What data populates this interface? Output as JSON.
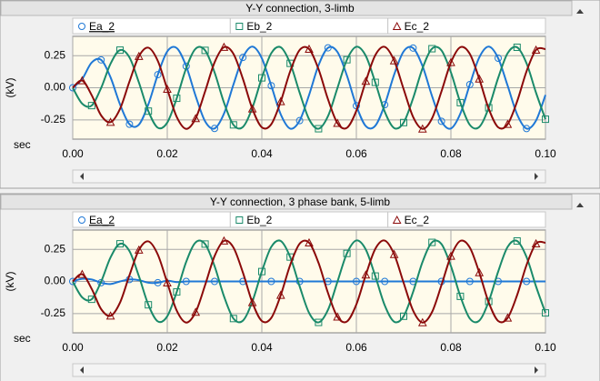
{
  "chart_data": [
    {
      "type": "line",
      "title": "Y-Y connection, 3-limb",
      "y_label": "(kV)",
      "x_label": "sec",
      "x": [
        0,
        0.002,
        0.004,
        0.006,
        0.008,
        0.01,
        0.012,
        0.014,
        0.016,
        0.018,
        0.02,
        0.022,
        0.024,
        0.026,
        0.028,
        0.03,
        0.032,
        0.034,
        0.036,
        0.038,
        0.04,
        0.042,
        0.044,
        0.046,
        0.048,
        0.05,
        0.052,
        0.054,
        0.056,
        0.058,
        0.06,
        0.062,
        0.064,
        0.066,
        0.068,
        0.07,
        0.072,
        0.074,
        0.076,
        0.078,
        0.08,
        0.082,
        0.084,
        0.086,
        0.088,
        0.09,
        0.092,
        0.094,
        0.096,
        0.098,
        0.1
      ],
      "series": [
        {
          "name": "Ea_2",
          "color": "#1f78d6",
          "marker": "circle",
          "values": [
            0,
            0.068,
            0.196,
            0.217,
            0.081,
            -0.129,
            -0.284,
            -0.287,
            -0.129,
            0.102,
            0.283,
            0.309,
            0.168,
            -0.064,
            -0.261,
            -0.317,
            -0.201,
            0.025,
            0.236,
            0.32,
            0.23,
            0.016,
            -0.207,
            -0.318,
            -0.256,
            -0.056,
            0.175,
            0.311,
            0.278,
            0.095,
            -0.14,
            -0.299,
            -0.296,
            -0.132,
            0.103,
            0.283,
            0.309,
            0.168,
            -0.064,
            -0.261,
            -0.317,
            -0.201,
            0.025,
            0.236,
            0.32,
            0.23,
            0.016,
            -0.207,
            -0.318,
            -0.256,
            -0.056
          ]
        },
        {
          "name": "Eb_2",
          "color": "#1a8a6a",
          "marker": "square",
          "values": [
            0,
            -0.124,
            -0.139,
            -0.002,
            0.187,
            0.293,
            0.236,
            0.041,
            -0.182,
            -0.311,
            -0.271,
            -0.082,
            0.152,
            0.304,
            0.291,
            0.12,
            -0.116,
            -0.289,
            -0.305,
            -0.156,
            0.077,
            0.269,
            0.315,
            0.19,
            -0.038,
            -0.245,
            -0.319,
            -0.221,
            -0.002,
            0.218,
            0.319,
            0.248,
            0.042,
            -0.186,
            -0.314,
            -0.271,
            -0.082,
            0.152,
            0.304,
            0.291,
            0.12,
            -0.116,
            -0.289,
            -0.305,
            -0.156,
            0.077,
            0.269,
            0.315,
            0.19,
            -0.038,
            -0.245
          ]
        },
        {
          "name": "Ec_2",
          "color": "#8b0a0a",
          "marker": "triangle",
          "values": [
            0,
            0.056,
            -0.057,
            -0.215,
            -0.268,
            -0.165,
            0.048,
            0.245,
            0.312,
            0.209,
            -0.011,
            -0.227,
            -0.32,
            -0.239,
            -0.029,
            0.197,
            0.316,
            0.264,
            0.069,
            -0.164,
            -0.308,
            -0.284,
            -0.107,
            0.128,
            0.294,
            0.301,
            0.144,
            -0.09,
            -0.276,
            -0.312,
            -0.179,
            0.051,
            0.253,
            0.318,
            0.211,
            -0.011,
            -0.227,
            -0.32,
            -0.239,
            -0.029,
            0.197,
            0.316,
            0.264,
            0.069,
            -0.164,
            -0.308,
            -0.284,
            -0.107,
            0.128,
            0.294,
            0.301
          ]
        }
      ],
      "xlim": [
        0,
        0.1
      ],
      "xticks": [
        {
          "value": 0,
          "label": "0.00"
        },
        0.02,
        0.04,
        0.06,
        0.08,
        {
          "value": 0.1,
          "label": "0.10"
        }
      ],
      "ylim": [
        -0.4,
        0.4
      ],
      "yticks": [
        0.25,
        {
          "value": 0,
          "label": "0.00"
        },
        -0.25
      ],
      "grid": true
    },
    {
      "type": "line",
      "title": "Y-Y connection, 3 phase bank, 5-limb",
      "y_label": "(kV)",
      "x_label": "sec",
      "x": [
        0,
        0.002,
        0.004,
        0.006,
        0.008,
        0.01,
        0.012,
        0.014,
        0.016,
        0.018,
        0.02,
        0.022,
        0.024,
        0.026,
        0.028,
        0.03,
        0.032,
        0.034,
        0.036,
        0.038,
        0.04,
        0.042,
        0.044,
        0.046,
        0.048,
        0.05,
        0.052,
        0.054,
        0.056,
        0.058,
        0.06,
        0.062,
        0.064,
        0.066,
        0.068,
        0.07,
        0.072,
        0.074,
        0.076,
        0.078,
        0.08,
        0.082,
        0.084,
        0.086,
        0.088,
        0.09,
        0.092,
        0.094,
        0.096,
        0.098,
        0.1
      ],
      "series": [
        {
          "name": "Ea_2",
          "color": "#1f78d6",
          "marker": "circle",
          "values": [
            0,
            0.02,
            0.015,
            -0.01,
            -0.02,
            0,
            0.015,
            0.01,
            -0.01,
            -0.01,
            0.005,
            -0.005,
            0,
            0,
            0,
            0,
            0,
            0,
            0,
            0,
            0,
            0,
            0,
            0,
            0,
            0,
            0,
            0,
            0,
            0,
            0,
            0,
            0,
            0,
            0,
            0,
            0,
            0,
            0,
            0,
            0,
            0,
            0,
            0,
            0,
            0,
            0,
            0,
            0,
            0,
            0
          ]
        },
        {
          "name": "Eb_2",
          "color": "#1a8a6a",
          "marker": "square",
          "values": [
            0,
            -0.124,
            -0.139,
            -0.002,
            0.187,
            0.293,
            0.236,
            0.041,
            -0.182,
            -0.311,
            -0.271,
            -0.082,
            0.152,
            0.304,
            0.291,
            0.12,
            -0.116,
            -0.289,
            -0.305,
            -0.156,
            0.077,
            0.269,
            0.315,
            0.19,
            -0.038,
            -0.245,
            -0.319,
            -0.221,
            -0.002,
            0.218,
            0.319,
            0.248,
            0.042,
            -0.186,
            -0.314,
            -0.271,
            -0.082,
            0.152,
            0.304,
            0.291,
            0.12,
            -0.116,
            -0.289,
            -0.305,
            -0.156,
            0.077,
            0.269,
            0.315,
            0.19,
            -0.038,
            -0.245
          ]
        },
        {
          "name": "Ec_2",
          "color": "#8b0a0a",
          "marker": "triangle",
          "values": [
            0,
            0.056,
            -0.057,
            -0.215,
            -0.268,
            -0.165,
            0.048,
            0.245,
            0.312,
            0.209,
            -0.011,
            -0.227,
            -0.32,
            -0.239,
            -0.029,
            0.197,
            0.316,
            0.264,
            0.069,
            -0.164,
            -0.308,
            -0.284,
            -0.107,
            0.128,
            0.294,
            0.301,
            0.144,
            -0.09,
            -0.276,
            -0.312,
            -0.179,
            0.051,
            0.253,
            0.318,
            0.211,
            -0.011,
            -0.227,
            -0.32,
            -0.239,
            -0.029,
            0.197,
            0.316,
            0.264,
            0.069,
            -0.164,
            -0.308,
            -0.284,
            -0.107,
            0.128,
            0.294,
            0.301
          ]
        }
      ],
      "xlim": [
        0,
        0.1
      ],
      "xticks": [
        {
          "value": 0,
          "label": "0.00"
        },
        0.02,
        0.04,
        0.06,
        0.08,
        {
          "value": 0.1,
          "label": "0.10"
        }
      ],
      "ylim": [
        -0.4,
        0.4
      ],
      "yticks": [
        0.25,
        {
          "value": 0,
          "label": "0.00"
        },
        -0.25
      ],
      "grid": true
    }
  ]
}
